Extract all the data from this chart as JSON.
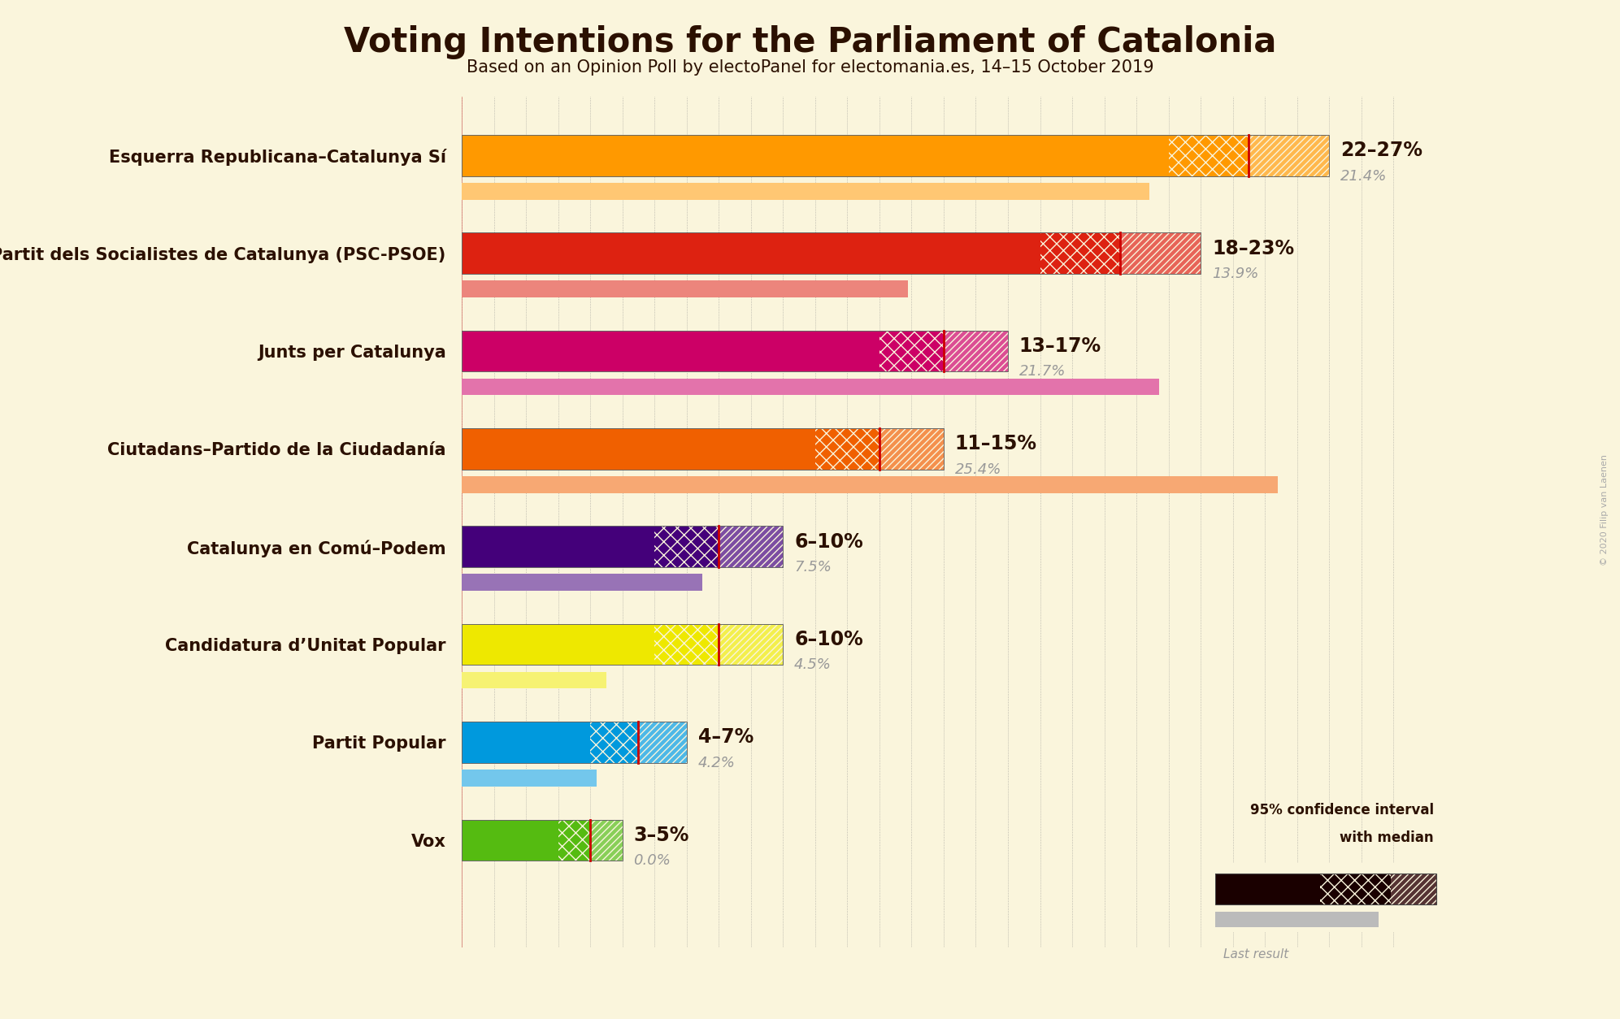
{
  "title": "Voting Intentions for the Parliament of Catalonia",
  "subtitle": "Based on an Opinion Poll by electoPanel for electomania.es, 14–15 October 2019",
  "copyright": "© 2020 Filip van Laenen",
  "bg": "#FAF5DC",
  "parties": [
    {
      "name": "Esquerra Republicana–Catalunya Sí",
      "ci_low": 22,
      "ci_high": 27,
      "median": 24.5,
      "last_result": 21.4,
      "color": "#FF9900",
      "range_label": "22–27%",
      "last_label": "21.4%"
    },
    {
      "name": "Partit dels Socialistes de Catalunya (PSC-PSOE)",
      "ci_low": 18,
      "ci_high": 23,
      "median": 20.5,
      "last_result": 13.9,
      "color": "#DD2211",
      "range_label": "18–23%",
      "last_label": "13.9%"
    },
    {
      "name": "Junts per Catalunya",
      "ci_low": 13,
      "ci_high": 17,
      "median": 15.0,
      "last_result": 21.7,
      "color": "#CC0066",
      "range_label": "13–17%",
      "last_label": "21.7%"
    },
    {
      "name": "Ciutadans–Partido de la Ciudadanía",
      "ci_low": 11,
      "ci_high": 15,
      "median": 13.0,
      "last_result": 25.4,
      "color": "#F06000",
      "range_label": "11–15%",
      "last_label": "25.4%"
    },
    {
      "name": "Catalunya en Comú–Podem",
      "ci_low": 6,
      "ci_high": 10,
      "median": 8.0,
      "last_result": 7.5,
      "color": "#44007A",
      "range_label": "6–10%",
      "last_label": "7.5%"
    },
    {
      "name": "Candidatura d’Unitat Popular",
      "ci_low": 6,
      "ci_high": 10,
      "median": 8.0,
      "last_result": 4.5,
      "color": "#EEE800",
      "range_label": "6–10%",
      "last_label": "4.5%"
    },
    {
      "name": "Partit Popular",
      "ci_low": 4,
      "ci_high": 7,
      "median": 5.5,
      "last_result": 4.2,
      "color": "#0099DD",
      "range_label": "4–7%",
      "last_label": "4.2%"
    },
    {
      "name": "Vox",
      "ci_low": 3,
      "ci_high": 5,
      "median": 4.0,
      "last_result": 0.0,
      "color": "#55BB11",
      "range_label": "3–5%",
      "last_label": "0.0%"
    }
  ],
  "x_max": 30,
  "title_color": "#2B1000",
  "label_color": "#2B1000",
  "range_color": "#2B1000",
  "last_color": "#999999",
  "median_line_color": "#CC0000",
  "grid_color": "#888888",
  "title_fontsize": 30,
  "subtitle_fontsize": 15,
  "label_fontsize": 15,
  "range_fontsize": 17,
  "last_fontsize": 13
}
